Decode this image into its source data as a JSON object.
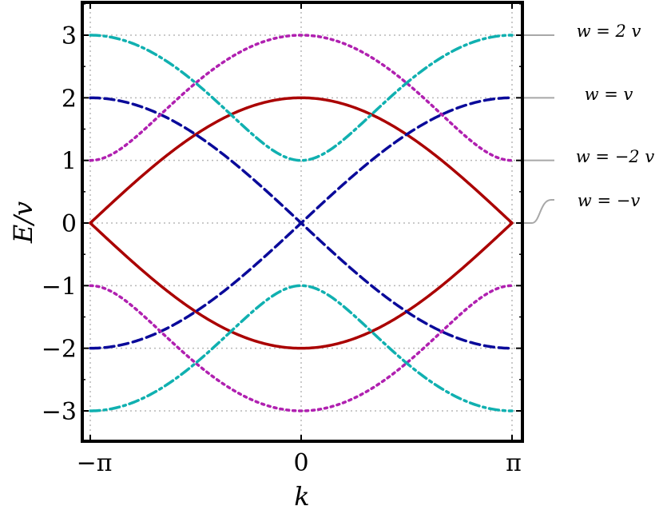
{
  "chart_data": {
    "type": "line",
    "xlabel": "k",
    "ylabel": "E/v",
    "xlim": [
      -3.14159,
      3.14159
    ],
    "ylim": [
      -3.5,
      3.5
    ],
    "grid": true,
    "x_ticks": [
      {
        "value": -3.14159,
        "label": "−π"
      },
      {
        "value": 0,
        "label": "0"
      },
      {
        "value": 3.14159,
        "label": "π"
      }
    ],
    "y_ticks": [
      {
        "value": 3,
        "label": "3"
      },
      {
        "value": 2,
        "label": "2"
      },
      {
        "value": 1,
        "label": "1"
      },
      {
        "value": 0,
        "label": "0"
      },
      {
        "value": -1,
        "label": "−1"
      },
      {
        "value": -2,
        "label": "−2"
      },
      {
        "value": -3,
        "label": "−3"
      }
    ],
    "legend_placement": "right",
    "series": [
      {
        "name": "w = v",
        "w_over_v": 1,
        "color": "#aa0000",
        "dash": "solid",
        "x": [
          -3.14159,
          -1.5708,
          0,
          1.5708,
          3.14159
        ],
        "upper": [
          2,
          1.41,
          0,
          1.41,
          2
        ],
        "lower": [
          -2,
          -1.41,
          0,
          -1.41,
          -2
        ]
      },
      {
        "name": "w = −v",
        "w_over_v": -1,
        "color": "#0a0a9a",
        "dash": "dashed",
        "x": [
          -3.14159,
          -1.5708,
          0,
          1.5708,
          3.14159
        ],
        "upper": [
          0,
          1.41,
          2,
          1.41,
          0
        ],
        "lower": [
          0,
          -1.41,
          -2,
          -1.41,
          0
        ]
      },
      {
        "name": "w = 2 v",
        "w_over_v": 2,
        "color": "#b020b0",
        "dash": "dotted",
        "x": [
          -3.14159,
          -1.5708,
          0,
          1.5708,
          3.14159
        ],
        "upper": [
          3,
          2.24,
          1,
          2.24,
          3
        ],
        "lower": [
          -3,
          -2.24,
          -1,
          -2.24,
          -3
        ]
      },
      {
        "name": "w = −2 v",
        "w_over_v": -2,
        "color": "#10b0b0",
        "dash": "dotdash",
        "x": [
          -3.14159,
          -1.5708,
          0,
          1.5708,
          3.14159
        ],
        "upper": [
          1,
          2.24,
          3,
          2.24,
          1
        ],
        "lower": [
          -1,
          -2.24,
          -3,
          -2.24,
          -1
        ]
      }
    ],
    "legend": [
      {
        "label": "w = 2 v",
        "series_index": 2,
        "attach_y": 3
      },
      {
        "label": "w = v",
        "series_index": 0,
        "attach_y": 2
      },
      {
        "label": "w = −2 v",
        "series_index": 3,
        "attach_y": 1
      },
      {
        "label": "w = −v",
        "series_index": 1,
        "attach_y": 0
      }
    ]
  }
}
